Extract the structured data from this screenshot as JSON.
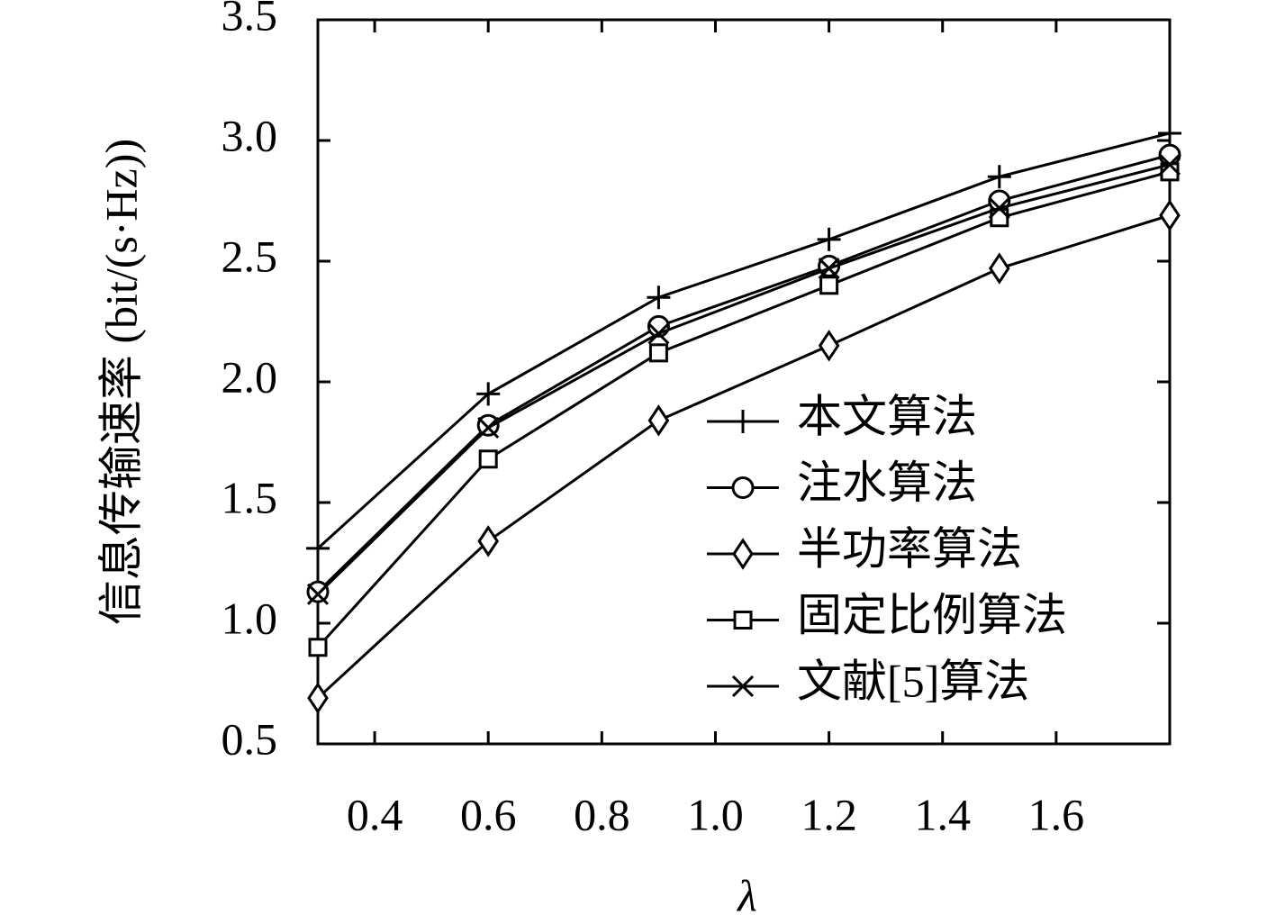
{
  "chart_data": {
    "type": "line",
    "xlabel": "λ",
    "ylabel": "信息传输速率 (bit/(s·Hz))",
    "x": [
      0.3,
      0.6,
      0.9,
      1.2,
      1.5,
      1.8
    ],
    "xlim": [
      0.3,
      1.8
    ],
    "ylim": [
      0.5,
      3.5
    ],
    "xticks": [
      0.4,
      0.6,
      0.8,
      {
        "value": 1,
        "label": "1.0"
      },
      1.2,
      1.4,
      1.6
    ],
    "yticks": [
      0.5,
      {
        "value": 1,
        "label": "1.0"
      },
      1.5,
      {
        "value": 2,
        "label": "2.0"
      },
      2.5,
      {
        "value": 3,
        "label": "3.0"
      },
      3.5
    ],
    "legend": "lower right",
    "series": [
      {
        "name": "本文算法",
        "color": "#000000",
        "marker": "plus",
        "values": [
          1.31,
          1.95,
          2.35,
          2.59,
          2.85,
          3.03
        ]
      },
      {
        "name": "注水算法",
        "color": "#000000",
        "marker": "circle",
        "values": [
          1.13,
          1.82,
          2.23,
          2.48,
          2.75,
          2.94
        ]
      },
      {
        "name": "半功率算法",
        "color": "#000000",
        "marker": "diamond",
        "values": [
          0.69,
          1.34,
          1.84,
          2.15,
          2.47,
          2.69
        ]
      },
      {
        "name": "固定比例算法",
        "color": "#000000",
        "marker": "square",
        "values": [
          0.9,
          1.68,
          2.12,
          2.4,
          2.68,
          2.87
        ]
      },
      {
        "name": "文献[5]算法",
        "color": "#000000",
        "marker": "x",
        "values": [
          1.12,
          1.81,
          2.2,
          2.47,
          2.72,
          2.9
        ]
      }
    ]
  }
}
